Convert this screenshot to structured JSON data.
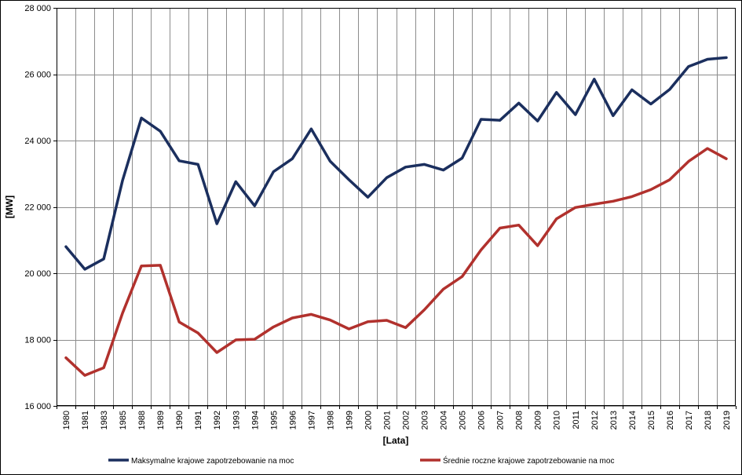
{
  "chart_data": {
    "type": "line",
    "title": "",
    "xlabel": "[Lata]",
    "ylabel": "[MW]",
    "ylim": [
      16000,
      28000
    ],
    "y_ticks": [
      16000,
      18000,
      20000,
      22000,
      24000,
      26000,
      28000
    ],
    "y_tick_labels": [
      "16 000",
      "18 000",
      "20 000",
      "22 000",
      "24 000",
      "26 000",
      "28 000"
    ],
    "grid": true,
    "legend_position": "bottom",
    "categories": [
      "1980",
      "1981",
      "1983",
      "1985",
      "1988",
      "1989",
      "1990",
      "1991",
      "1992",
      "1993",
      "1994",
      "1995",
      "1996",
      "1997",
      "1998",
      "1999",
      "2000",
      "2001",
      "2002",
      "2003",
      "2004",
      "2005",
      "2006",
      "2007",
      "2008",
      "2009",
      "2010",
      "2011",
      "2012",
      "2013",
      "2014",
      "2015",
      "2016",
      "2017",
      "2018",
      "2019"
    ],
    "series": [
      {
        "name": "Maksymalne krajowe zapotrzebowanie na moc",
        "color": "#1b2f5e",
        "values": [
          20800,
          20120,
          20430,
          22800,
          24680,
          24280,
          23390,
          23280,
          21490,
          22760,
          22030,
          23060,
          23450,
          24350,
          23380,
          22820,
          22290,
          22880,
          23200,
          23280,
          23110,
          23470,
          24640,
          24610,
          25130,
          24590,
          25450,
          24780,
          25850,
          24750,
          25530,
          25100,
          25540,
          26230,
          26450,
          26500
        ]
      },
      {
        "name": "Średnie roczne krajowe zapotrzebowanie na moc",
        "color": "#b1312d",
        "values": [
          17450,
          16920,
          17150,
          18800,
          20220,
          20240,
          18530,
          18200,
          17610,
          17990,
          18010,
          18380,
          18650,
          18760,
          18590,
          18320,
          18540,
          18580,
          18360,
          18900,
          19520,
          19900,
          20700,
          21360,
          21450,
          20830,
          21640,
          21980,
          22080,
          22170,
          22310,
          22520,
          22820,
          23370,
          23760,
          23450
        ]
      }
    ]
  }
}
